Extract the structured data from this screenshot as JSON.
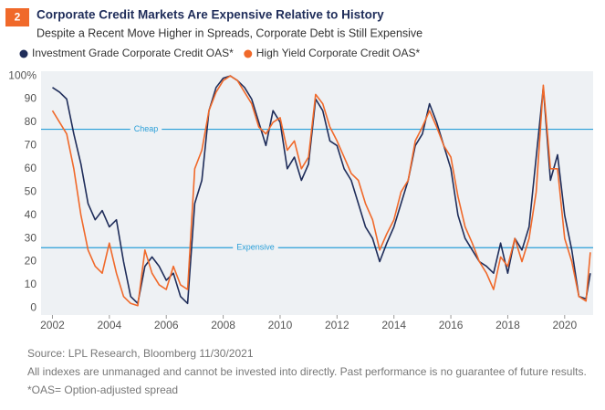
{
  "chart_data": {
    "type": "line",
    "badge": "2",
    "title": "Corporate Credit Markets Are Expensive Relative to History",
    "subtitle": "Despite a Recent Move Higher in Spreads, Corporate Debt is Still Expensive",
    "x": [
      2002,
      2002.25,
      2002.5,
      2002.75,
      2003,
      2003.25,
      2003.5,
      2003.75,
      2004,
      2004.25,
      2004.5,
      2004.75,
      2005,
      2005.25,
      2005.5,
      2005.75,
      2006,
      2006.25,
      2006.5,
      2006.75,
      2007,
      2007.25,
      2007.5,
      2007.75,
      2008,
      2008.25,
      2008.5,
      2008.75,
      2009,
      2009.25,
      2009.5,
      2009.75,
      2010,
      2010.25,
      2010.5,
      2010.75,
      2011,
      2011.25,
      2011.5,
      2011.75,
      2012,
      2012.25,
      2012.5,
      2012.75,
      2013,
      2013.25,
      2013.5,
      2013.75,
      2014,
      2014.25,
      2014.5,
      2014.75,
      2015,
      2015.25,
      2015.5,
      2015.75,
      2016,
      2016.25,
      2016.5,
      2016.75,
      2017,
      2017.25,
      2017.5,
      2017.75,
      2018,
      2018.25,
      2018.5,
      2018.75,
      2019,
      2019.25,
      2019.5,
      2019.75,
      2020,
      2020.25,
      2020.5,
      2020.75,
      2020.9
    ],
    "series": [
      {
        "name": "Investment Grade Corporate Credit OAS*",
        "color": "#1f2d5a",
        "values": [
          95,
          93,
          90,
          75,
          62,
          45,
          38,
          42,
          35,
          38,
          20,
          5,
          2,
          18,
          22,
          18,
          12,
          15,
          5,
          2,
          45,
          55,
          85,
          95,
          99,
          100,
          98,
          95,
          90,
          80,
          70,
          85,
          80,
          60,
          65,
          55,
          62,
          90,
          85,
          72,
          70,
          60,
          55,
          45,
          35,
          30,
          20,
          28,
          35,
          45,
          55,
          70,
          75,
          88,
          80,
          70,
          60,
          40,
          30,
          25,
          20,
          18,
          15,
          28,
          15,
          30,
          25,
          35,
          65,
          95,
          55,
          66,
          40,
          25,
          5,
          4,
          15
        ]
      },
      {
        "name": "High Yield Corporate Credit OAS*",
        "color": "#f0692a",
        "values": [
          85,
          80,
          75,
          60,
          40,
          25,
          18,
          15,
          28,
          15,
          5,
          2,
          1,
          25,
          15,
          10,
          8,
          18,
          10,
          8,
          60,
          68,
          85,
          93,
          98,
          100,
          98,
          93,
          88,
          78,
          75,
          80,
          82,
          68,
          72,
          60,
          65,
          92,
          88,
          78,
          72,
          65,
          58,
          55,
          45,
          38,
          25,
          32,
          38,
          50,
          55,
          72,
          78,
          85,
          78,
          70,
          65,
          48,
          35,
          28,
          20,
          15,
          8,
          22,
          18,
          30,
          20,
          30,
          50,
          96,
          60,
          60,
          30,
          20,
          5,
          3,
          24
        ]
      }
    ],
    "reference_lines": [
      {
        "value": 77,
        "label": "Cheap"
      },
      {
        "value": 26,
        "label": "Expensive"
      }
    ],
    "reference_color": "#2a9fd8",
    "xlim": [
      2001.6,
      2021.0
    ],
    "xticks": [
      2002,
      2004,
      2006,
      2008,
      2010,
      2012,
      2014,
      2016,
      2018,
      2020
    ],
    "ylim": [
      -3,
      102
    ],
    "yticks": [
      0,
      10,
      20,
      30,
      40,
      50,
      60,
      70,
      80,
      90,
      {
        "value": 100,
        "label": "100%"
      }
    ],
    "notes": [
      "Source: LPL Research, Bloomberg 11/30/2021",
      "All indexes are unmanaged and cannot be invested into directly. Past performance is no guarantee of future results.",
      "*OAS= Option-adjusted spread"
    ]
  }
}
